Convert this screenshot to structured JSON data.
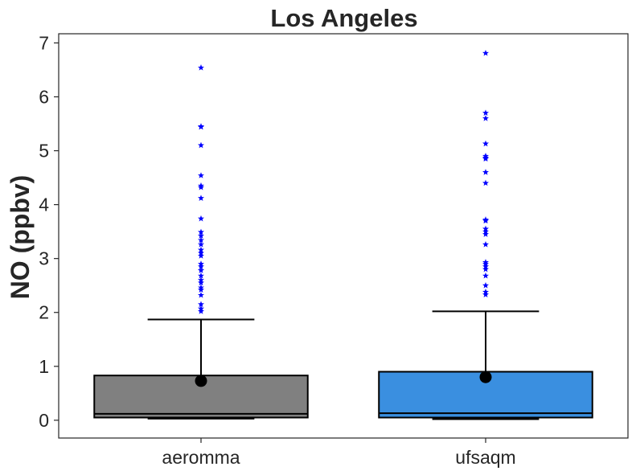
{
  "chart_data": {
    "type": "box",
    "title": "Los Angeles",
    "xlabel": "",
    "ylabel": "NO (ppbv)",
    "ylim": [
      -0.33,
      7.17
    ],
    "yticks": [
      0,
      1,
      2,
      3,
      4,
      5,
      6,
      7
    ],
    "grid": false,
    "categories": [
      "aeromma",
      "ufsaqm"
    ],
    "series": [
      {
        "category": "aeromma",
        "color": "#808080",
        "whisker_low": 0.03,
        "q1": 0.05,
        "median": 0.12,
        "q3": 0.83,
        "whisker_high": 1.87,
        "mean": 0.73,
        "outliers": [
          2.02,
          2.07,
          2.15,
          2.32,
          2.42,
          2.46,
          2.55,
          2.6,
          2.68,
          2.78,
          2.85,
          2.9,
          3.05,
          3.1,
          3.16,
          3.26,
          3.34,
          3.42,
          3.49,
          3.74,
          4.12,
          4.32,
          4.35,
          4.54,
          5.1,
          5.44,
          5.45,
          6.54
        ]
      },
      {
        "category": "ufsaqm",
        "color": "#3a8fe0",
        "whisker_low": 0.02,
        "q1": 0.05,
        "median": 0.13,
        "q3": 0.9,
        "whisker_high": 2.02,
        "mean": 0.8,
        "outliers": [
          2.33,
          2.38,
          2.5,
          2.68,
          2.8,
          2.85,
          2.9,
          2.93,
          3.26,
          3.45,
          3.5,
          3.55,
          3.7,
          3.72,
          4.4,
          4.6,
          4.85,
          4.87,
          4.9,
          5.13,
          5.6,
          5.7,
          6.81
        ]
      }
    ],
    "outlier_marker": "star",
    "outlier_color": "#0000ff",
    "mean_marker": "circle",
    "mean_color": "#000000"
  }
}
